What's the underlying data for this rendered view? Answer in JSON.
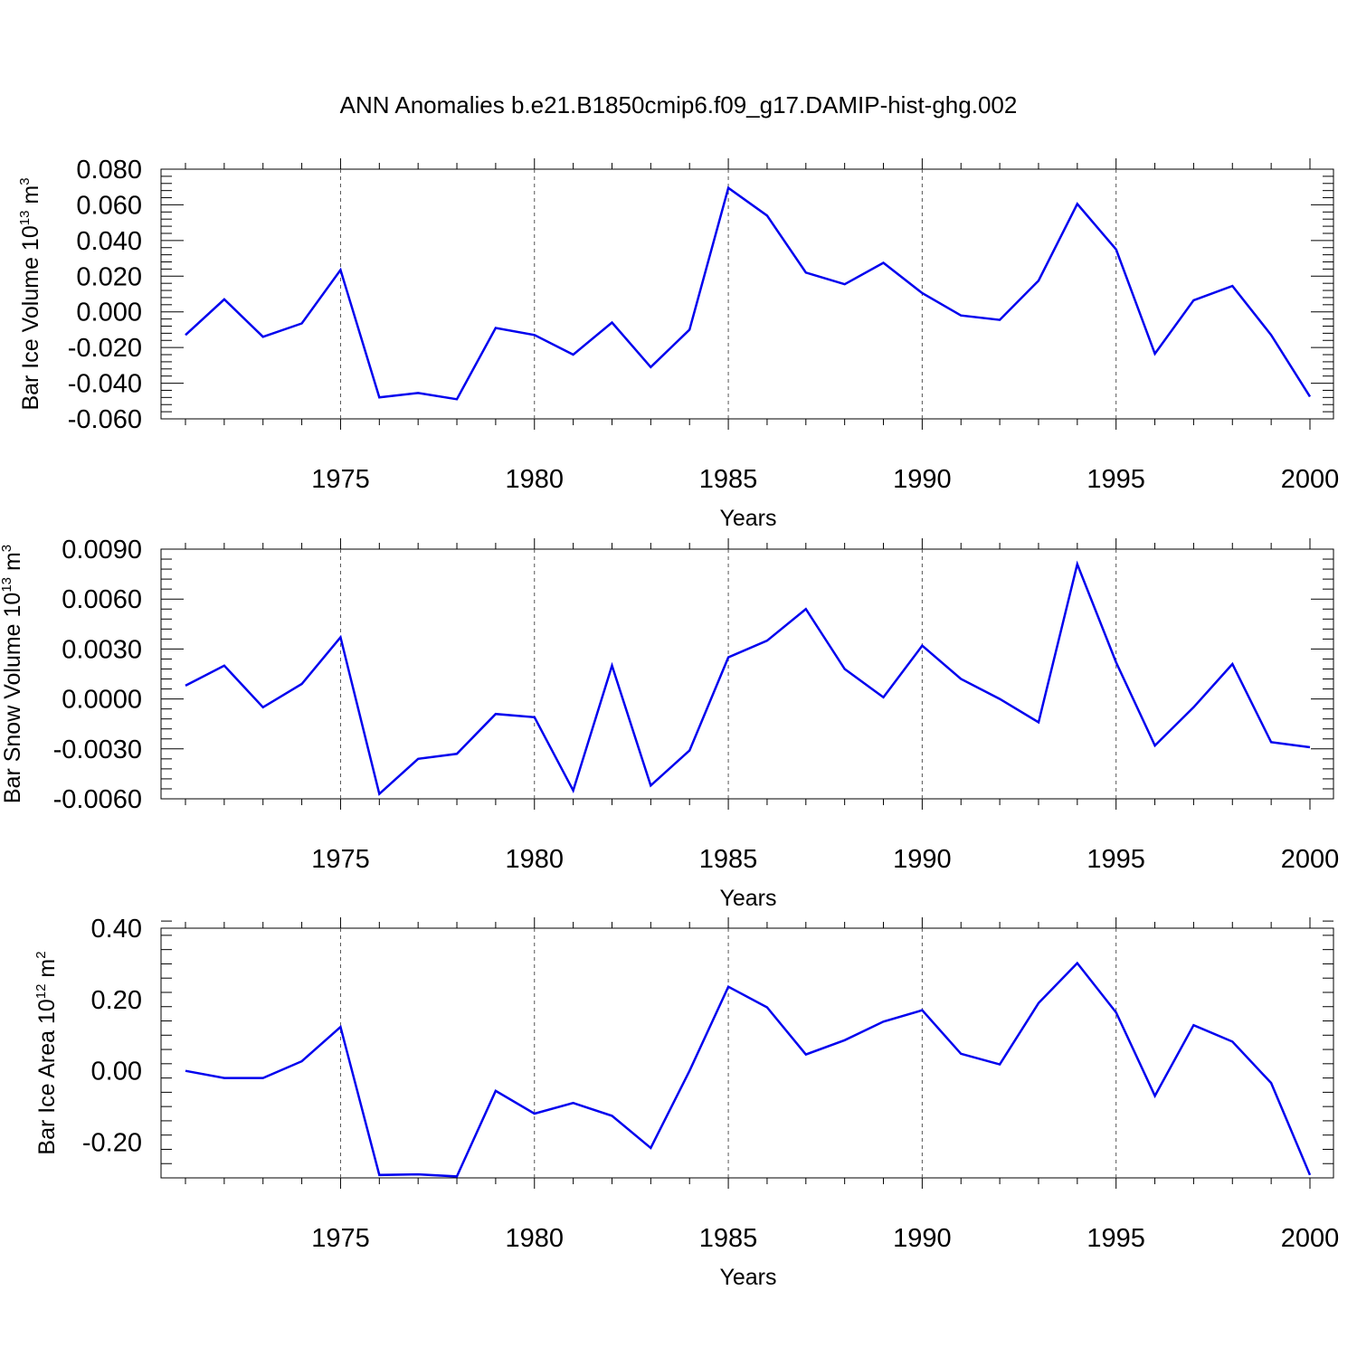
{
  "title": "ANN Anomalies b.e21.B1850cmip6.f09_g17.DAMIP-hist-ghg.002",
  "chart_data": [
    {
      "type": "line",
      "title": "",
      "xlabel": "Years",
      "ylabel": {
        "main": "Bar Ice Volume 10",
        "exp": "13",
        "unit": " m",
        "unit_exp": "3"
      },
      "xlim": [
        1971,
        2000
      ],
      "ylim": [
        -0.06,
        0.08
      ],
      "yticks": [
        -0.06,
        -0.04,
        -0.02,
        0.0,
        0.02,
        0.04,
        0.06,
        0.08
      ],
      "ytick_labels": [
        "-0.060",
        "-0.040",
        "-0.020",
        "0.000",
        "0.020",
        "0.040",
        "0.060",
        "0.080"
      ],
      "xticks": [
        1975,
        1980,
        1985,
        1990,
        1995,
        2000
      ],
      "xtick_labels": [
        "1975",
        "1980",
        "1985",
        "1990",
        "1995",
        "2000"
      ],
      "grid": "dashed vertical at major x ticks",
      "color": "#0000ee",
      "x": [
        1971,
        1972,
        1973,
        1974,
        1975,
        1976,
        1977,
        1978,
        1979,
        1980,
        1981,
        1982,
        1983,
        1984,
        1985,
        1986,
        1987,
        1988,
        1989,
        1990,
        1991,
        1992,
        1993,
        1994,
        1995,
        1996,
        1997,
        1998,
        1999,
        2000
      ],
      "values": [
        -0.013,
        0.007,
        -0.014,
        -0.0065,
        0.0235,
        -0.048,
        -0.0455,
        -0.049,
        -0.009,
        -0.013,
        -0.024,
        -0.006,
        -0.031,
        -0.01,
        0.0695,
        0.054,
        0.022,
        0.0155,
        0.0275,
        0.0105,
        -0.002,
        -0.0045,
        0.0175,
        0.0605,
        0.035,
        -0.0235,
        0.0065,
        0.0145,
        -0.013,
        -0.0475
      ]
    },
    {
      "type": "line",
      "title": "",
      "xlabel": "Years",
      "ylabel": {
        "main": "Bar Snow Volume 10",
        "exp": "13",
        "unit": " m",
        "unit_exp": "3"
      },
      "xlim": [
        1971,
        2000
      ],
      "ylim": [
        -0.006,
        0.009
      ],
      "yticks": [
        -0.006,
        -0.003,
        0.0,
        0.003,
        0.006,
        0.009
      ],
      "ytick_labels": [
        "-0.0060",
        "-0.0030",
        "0.0000",
        "0.0030",
        "0.0060",
        "0.0090"
      ],
      "xticks": [
        1975,
        1980,
        1985,
        1990,
        1995,
        2000
      ],
      "xtick_labels": [
        "1975",
        "1980",
        "1985",
        "1990",
        "1995",
        "2000"
      ],
      "grid": "dashed vertical at major x ticks",
      "color": "#0000ee",
      "x": [
        1971,
        1972,
        1973,
        1974,
        1975,
        1976,
        1977,
        1978,
        1979,
        1980,
        1981,
        1982,
        1983,
        1984,
        1985,
        1986,
        1987,
        1988,
        1989,
        1990,
        1991,
        1992,
        1993,
        1994,
        1995,
        1996,
        1997,
        1998,
        1999,
        2000
      ],
      "values": [
        0.0008,
        0.002,
        -0.0005,
        0.0009,
        0.0037,
        -0.0057,
        -0.0036,
        -0.0033,
        -0.0009,
        -0.0011,
        -0.0055,
        0.002,
        -0.0052,
        -0.0031,
        0.0025,
        0.0035,
        0.0054,
        0.0018,
        0.0001,
        0.0032,
        0.0012,
        0.0,
        -0.0014,
        0.0081,
        0.0022,
        -0.0028,
        -0.0005,
        0.0021,
        -0.0026,
        -0.0029
      ]
    },
    {
      "type": "line",
      "title": "",
      "xlabel": "Years",
      "ylabel": {
        "main": "Bar Ice Area 10",
        "exp": "12",
        "unit": " m",
        "unit_exp": "2"
      },
      "xlim": [
        1971,
        2000
      ],
      "ylim": [
        -0.3,
        0.4
      ],
      "yticks": [
        -0.2,
        0.0,
        0.2,
        0.4
      ],
      "ytick_labels": [
        "-0.20",
        "0.00",
        "0.20",
        "0.40"
      ],
      "xticks": [
        1975,
        1980,
        1985,
        1990,
        1995,
        2000
      ],
      "xtick_labels": [
        "1975",
        "1980",
        "1985",
        "1990",
        "1995",
        "2000"
      ],
      "grid": "dashed vertical at major x ticks",
      "color": "#0000ee",
      "x": [
        1971,
        1972,
        1973,
        1974,
        1975,
        1976,
        1977,
        1978,
        1979,
        1980,
        1981,
        1982,
        1983,
        1984,
        1985,
        1986,
        1987,
        1988,
        1989,
        1990,
        1991,
        1992,
        1993,
        1994,
        1995,
        1996,
        1997,
        1998,
        1999,
        2000
      ],
      "values": [
        0.0,
        -0.02,
        -0.02,
        0.027,
        0.123,
        -0.292,
        -0.29,
        -0.296,
        -0.056,
        -0.12,
        -0.09,
        -0.126,
        -0.216,
        0.0,
        0.236,
        0.178,
        0.046,
        0.086,
        0.138,
        0.17,
        0.048,
        0.018,
        0.19,
        0.302,
        0.164,
        -0.07,
        0.128,
        0.082,
        -0.034,
        -0.292
      ]
    }
  ]
}
